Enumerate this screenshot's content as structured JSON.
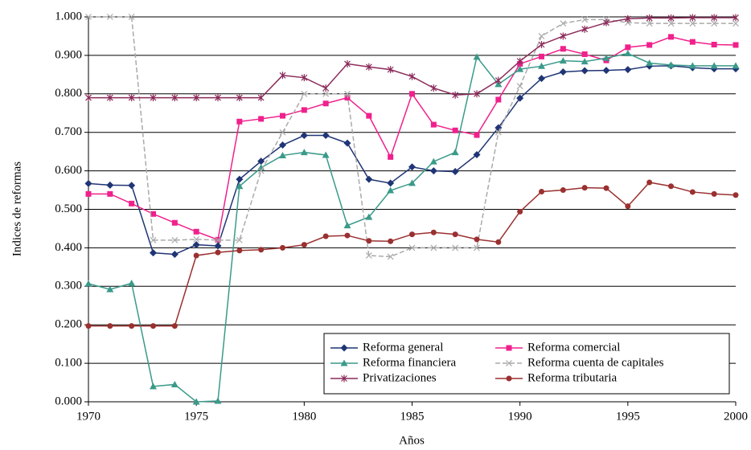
{
  "chart_data": {
    "type": "line",
    "x_label": "Años",
    "y_label": "Indices de reformas",
    "x": [
      1970,
      1971,
      1972,
      1973,
      1974,
      1975,
      1976,
      1977,
      1978,
      1979,
      1980,
      1981,
      1982,
      1983,
      1984,
      1985,
      1986,
      1987,
      1988,
      1989,
      1990,
      1991,
      1992,
      1993,
      1994,
      1995,
      1996,
      1997,
      1998,
      1999,
      2000
    ],
    "xlim": [
      1970,
      2000
    ],
    "xticks": [
      1970,
      1975,
      1980,
      1985,
      1990,
      1995,
      2000
    ],
    "ylim": [
      0,
      1
    ],
    "yticks": [
      {
        "value": 0,
        "label": "0.000"
      },
      {
        "value": 0.1,
        "label": "0.100"
      },
      {
        "value": 0.2,
        "label": "0.200"
      },
      {
        "value": 0.3,
        "label": "0.300"
      },
      {
        "value": 0.4,
        "label": "0.400"
      },
      {
        "value": 0.5,
        "label": "0.500"
      },
      {
        "value": 0.6,
        "label": "0.600"
      },
      {
        "value": 0.7,
        "label": "0.700"
      },
      {
        "value": 0.8,
        "label": "0.800"
      },
      {
        "value": 0.9,
        "label": "0.900"
      },
      {
        "value": 1,
        "label": "1.000"
      }
    ],
    "grid": true,
    "legend": "lower right",
    "series": [
      {
        "name": "Reforma general",
        "color": "#1f3575",
        "marker": "diamond",
        "linestyle": "solid",
        "values": [
          0.567,
          0.563,
          0.562,
          0.387,
          0.383,
          0.408,
          0.405,
          0.578,
          0.625,
          0.667,
          0.692,
          0.692,
          0.672,
          0.578,
          0.568,
          0.61,
          0.6,
          0.598,
          0.642,
          0.712,
          0.789,
          0.84,
          0.857,
          0.86,
          0.861,
          0.863,
          0.872,
          0.873,
          0.868,
          0.865,
          0.865
        ]
      },
      {
        "name": "Reforma comercial",
        "color": "#f0208c",
        "marker": "square",
        "linestyle": "solid",
        "values": [
          0.54,
          0.54,
          0.515,
          0.488,
          0.465,
          0.442,
          0.421,
          0.728,
          0.735,
          0.743,
          0.758,
          0.775,
          0.79,
          0.743,
          0.636,
          0.8,
          0.72,
          0.705,
          0.693,
          0.785,
          0.878,
          0.897,
          0.917,
          0.903,
          0.887,
          0.921,
          0.927,
          0.948,
          0.935,
          0.928,
          0.927
        ]
      },
      {
        "name": "Reforma financiera",
        "color": "#3a9a8a",
        "marker": "triangle",
        "linestyle": "solid",
        "values": [
          0.307,
          0.292,
          0.308,
          0.04,
          0.045,
          0.0,
          0.002,
          0.56,
          0.608,
          0.64,
          0.648,
          0.641,
          0.458,
          0.48,
          0.549,
          0.568,
          0.624,
          0.648,
          0.896,
          0.825,
          0.864,
          0.872,
          0.886,
          0.884,
          0.893,
          0.905,
          0.88,
          0.875,
          0.873,
          0.873,
          0.873
        ]
      },
      {
        "name": "Reforma cuenta de capitales",
        "color": "#aaaaaa",
        "marker": "x",
        "linestyle": "dashed",
        "values": [
          1.0,
          1.0,
          1.0,
          0.42,
          0.42,
          0.422,
          0.42,
          0.42,
          0.6,
          0.7,
          0.8,
          0.8,
          0.8,
          0.38,
          0.377,
          0.4,
          0.4,
          0.4,
          0.4,
          0.7,
          0.82,
          0.95,
          0.983,
          0.993,
          0.993,
          0.985,
          0.983,
          0.983,
          0.983,
          0.983,
          0.983
        ]
      },
      {
        "name": "Privatizaciones",
        "color": "#8b2a5a",
        "marker": "star",
        "linestyle": "solid",
        "values": [
          0.79,
          0.79,
          0.79,
          0.79,
          0.79,
          0.79,
          0.79,
          0.79,
          0.79,
          0.848,
          0.842,
          0.815,
          0.878,
          0.87,
          0.863,
          0.845,
          0.815,
          0.797,
          0.8,
          0.835,
          0.885,
          0.928,
          0.95,
          0.968,
          0.985,
          0.995,
          0.997,
          0.997,
          0.998,
          0.998,
          0.998
        ]
      },
      {
        "name": "Reforma tributaria",
        "color": "#9b3030",
        "marker": "circle",
        "linestyle": "solid",
        "values": [
          0.197,
          0.197,
          0.197,
          0.197,
          0.197,
          0.38,
          0.388,
          0.393,
          0.395,
          0.4,
          0.408,
          0.43,
          0.432,
          0.418,
          0.417,
          0.435,
          0.44,
          0.435,
          0.422,
          0.415,
          0.494,
          0.546,
          0.55,
          0.556,
          0.555,
          0.508,
          0.57,
          0.56,
          0.545,
          0.54,
          0.537
        ]
      }
    ]
  }
}
